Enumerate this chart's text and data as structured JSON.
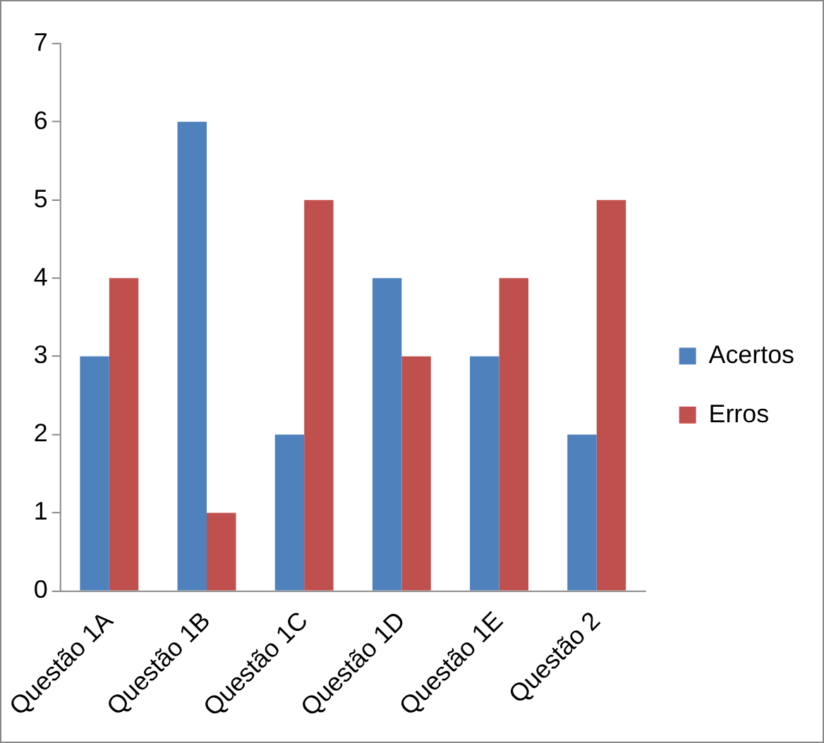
{
  "chart_data": {
    "type": "bar",
    "categories": [
      "Questão 1A",
      "Questão 1B",
      "Questão 1C",
      "Questão 1D",
      "Questão 1E",
      "Questão 2"
    ],
    "series": [
      {
        "name": "Acertos",
        "color": "#4f81bd",
        "values": [
          3,
          6,
          2,
          4,
          3,
          2
        ]
      },
      {
        "name": "Erros",
        "color": "#c0504d",
        "values": [
          4,
          1,
          5,
          3,
          4,
          5
        ]
      }
    ],
    "ylim": [
      0,
      7
    ],
    "yticks": [
      0,
      1,
      2,
      3,
      4,
      5,
      6,
      7
    ],
    "grid": false,
    "legend": "right"
  }
}
